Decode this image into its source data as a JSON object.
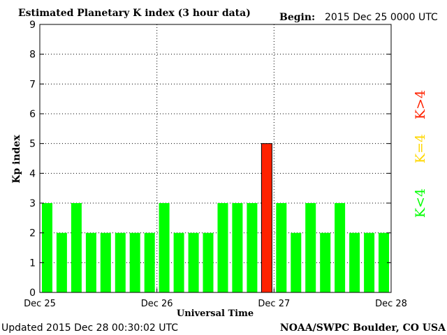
{
  "chart_data": {
    "type": "bar",
    "title": "Estimated Planetary K index (3 hour data)",
    "begin_label": "Begin:",
    "begin_value": "2015 Dec 25 0000 UTC",
    "xlabel": "Universal Time",
    "ylabel": "Kp index",
    "ylim": [
      0,
      9
    ],
    "yticks": [
      "0",
      "1",
      "2",
      "3",
      "4",
      "5",
      "6",
      "7",
      "8",
      "9"
    ],
    "xticks": [
      "Dec 25",
      "Dec 26",
      "Dec 27",
      "Dec 28"
    ],
    "grid": true,
    "values": [
      3,
      2,
      3,
      2,
      2,
      2,
      2,
      2,
      3,
      2,
      2,
      2,
      3,
      3,
      3,
      5,
      3,
      2,
      3,
      2,
      3,
      2,
      2,
      2
    ],
    "legend": {
      "placement": "right",
      "entries": [
        {
          "label": "K<4",
          "color": "#00ff00"
        },
        {
          "label": "K=4",
          "color": "#ffd700"
        },
        {
          "label": "K>4",
          "color": "#ff2200"
        }
      ]
    },
    "colors": {
      "low": "#00ff00",
      "equal": "#ffd700",
      "high": "#ff2200"
    }
  },
  "footer": {
    "updated": "Updated 2015 Dec 28 00:30:02 UTC",
    "credit": "NOAA/SWPC Boulder, CO USA"
  }
}
